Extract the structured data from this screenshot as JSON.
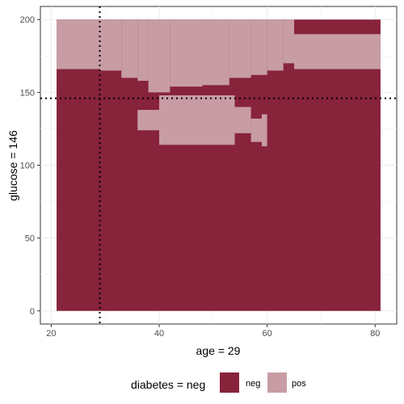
{
  "chart_data": {
    "type": "heatmap",
    "xlabel": "age  =  29",
    "ylabel": "glucose  =  146",
    "xlim": [
      18,
      84
    ],
    "ylim": [
      -9,
      209
    ],
    "x_ticks": [
      20,
      40,
      60,
      80
    ],
    "y_ticks": [
      0,
      50,
      100,
      150,
      200
    ],
    "x_tick_labels": [
      "20",
      "40",
      "60",
      "80"
    ],
    "y_tick_labels": [
      "0",
      "50",
      "100",
      "150",
      "200"
    ],
    "grid": true,
    "reference_lines": {
      "age": 29,
      "glucose": 146
    },
    "x_range": [
      21,
      81
    ],
    "y_range": [
      0,
      200
    ],
    "background_class": "neg",
    "regions": [
      {
        "class": "pos",
        "x": [
          21,
          29
        ],
        "y": [
          166,
          200
        ]
      },
      {
        "class": "pos",
        "x": [
          29,
          33
        ],
        "y": [
          165,
          200
        ]
      },
      {
        "class": "pos",
        "x": [
          33,
          36
        ],
        "y": [
          160,
          200
        ]
      },
      {
        "class": "pos",
        "x": [
          36,
          38
        ],
        "y": [
          158,
          200
        ]
      },
      {
        "class": "pos",
        "x": [
          38,
          42
        ],
        "y": [
          150,
          200
        ]
      },
      {
        "class": "pos",
        "x": [
          42,
          48
        ],
        "y": [
          154,
          200
        ]
      },
      {
        "class": "pos",
        "x": [
          48,
          53
        ],
        "y": [
          155,
          200
        ]
      },
      {
        "class": "pos",
        "x": [
          53,
          57
        ],
        "y": [
          160,
          200
        ]
      },
      {
        "class": "pos",
        "x": [
          57,
          60
        ],
        "y": [
          162,
          200
        ]
      },
      {
        "class": "pos",
        "x": [
          60,
          63
        ],
        "y": [
          165,
          200
        ]
      },
      {
        "class": "pos",
        "x": [
          63,
          65
        ],
        "y": [
          170,
          200
        ]
      },
      {
        "class": "pos",
        "x": [
          65,
          81
        ],
        "y": [
          166,
          190
        ]
      },
      {
        "class": "pos",
        "x": [
          36,
          40
        ],
        "y": [
          124,
          138
        ]
      },
      {
        "class": "pos",
        "x": [
          40,
          54
        ],
        "y": [
          114,
          148
        ]
      },
      {
        "class": "pos",
        "x": [
          54,
          57
        ],
        "y": [
          122,
          140
        ]
      },
      {
        "class": "pos",
        "x": [
          59,
          60
        ],
        "y": [
          113,
          135
        ]
      },
      {
        "class": "pos",
        "x": [
          57,
          59
        ],
        "y": [
          116,
          132
        ]
      }
    ],
    "legend": {
      "position": "bottom",
      "title": "diabetes  =  neg",
      "entries": [
        {
          "label": "neg",
          "color": "#87233B"
        },
        {
          "label": "pos",
          "color": "#C89CA5"
        }
      ]
    }
  }
}
